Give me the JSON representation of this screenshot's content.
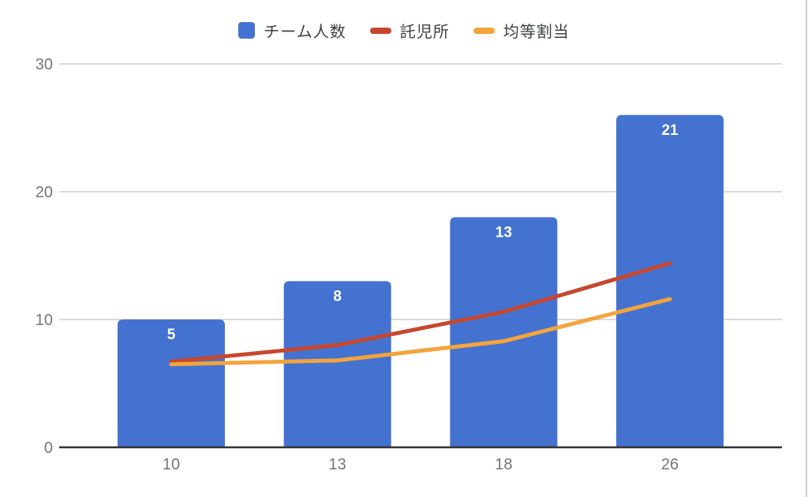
{
  "chart_data": {
    "type": "combo-bar-line",
    "title": "",
    "xlabel": "",
    "ylabel": "",
    "categories": [
      "10",
      "13",
      "18",
      "26"
    ],
    "series": [
      {
        "name": "チーム人数",
        "type": "bar",
        "color": "#4472D0",
        "values": [
          10,
          13,
          18,
          26
        ],
        "data_labels": [
          "5",
          "8",
          "13",
          "21"
        ]
      },
      {
        "name": "託児所",
        "type": "line",
        "color": "#C7472E",
        "values": [
          6.7,
          8.0,
          10.6,
          14.4
        ]
      },
      {
        "name": "均等割当",
        "type": "line",
        "color": "#F3A43B",
        "values": [
          6.5,
          6.8,
          8.3,
          11.6
        ]
      }
    ],
    "ylim": [
      0,
      30
    ],
    "yticks": [
      0,
      10,
      20,
      30
    ],
    "legend_position": "top-center",
    "grid": "horizontal",
    "colors": {
      "grid_line": "#dadada",
      "axis_line": "#333333",
      "tick_label": "#757575",
      "bar_data_label": "#ffffff",
      "legend_text": "#3c4043",
      "background": "#ffffff",
      "window_edge": "#cccccc"
    }
  }
}
